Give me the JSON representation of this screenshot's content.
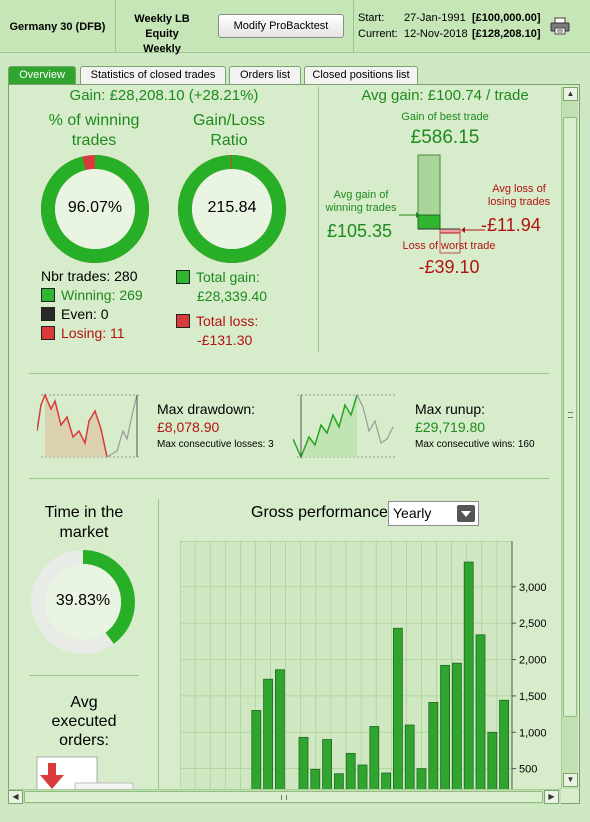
{
  "header": {
    "instrument": "Germany 30 (DFB)",
    "strategy_line1": "Weekly LB Equity",
    "strategy_line2": "Weekly",
    "modify_button": "Modify ProBacktest",
    "start_label": "Start:",
    "start_date": "27-Jan-1991",
    "start_value": "[£100,000.00]",
    "current_label": "Current:",
    "current_date": "12-Nov-2018",
    "current_value": "[£128,208.10]",
    "print_icon": "printer-icon"
  },
  "tabs": [
    "Overview",
    "Statistics of closed trades",
    "Orders list",
    "Closed positions list"
  ],
  "summary": {
    "gain_text": "Gain: £28,208.10 (+28.21%)",
    "pct_winning_title_1": "% of winning",
    "pct_winning_title_2": "trades",
    "pct_winning_value": "96.07%",
    "pct_winning_fraction": 0.9607,
    "gain_loss_title_1": "Gain/Loss",
    "gain_loss_title_2": "Ratio",
    "gain_loss_value": "215.84",
    "gain_loss_fraction": 0.9954,
    "nbr_trades": "Nbr trades: 280",
    "winning": "Winning: 269",
    "even": "Even: 0",
    "losing": "Losing: 11",
    "total_gain_label": "Total gain:",
    "total_gain_value": "£28,339.40",
    "total_loss_label": "Total loss:",
    "total_loss_value": "-£131.30"
  },
  "avg": {
    "title": "Avg gain: £100.74 / trade",
    "best_label": "Gain of best trade",
    "best_value": "£586.15",
    "avg_win_label_1": "Avg gain of",
    "avg_win_label_2": "winning trades",
    "avg_win_value": "£105.35",
    "avg_loss_label_1": "Avg loss of",
    "avg_loss_label_2": "losing trades",
    "avg_loss_value": "-£11.94",
    "worst_label": "Loss of worst trade",
    "worst_value": "-£39.10"
  },
  "drawdown": {
    "title": "Max drawdown:",
    "value": "£8,078.90",
    "sub": "Max consecutive losses: 3"
  },
  "runup": {
    "title": "Max runup:",
    "value": "£29,719.80",
    "sub": "Max consecutive wins: 160"
  },
  "time_market": {
    "title_1": "Time in the",
    "title_2": "market",
    "value": "39.83%",
    "fraction": 0.3983
  },
  "avg_orders": {
    "title_1": "Avg",
    "title_2": "executed",
    "title_3": "orders:"
  },
  "gross": {
    "title": "Gross performance",
    "period": "Yearly"
  },
  "colors": {
    "green": "#1e8a1e",
    "red": "#b31212",
    "bar": "#2fa52f"
  },
  "chart_data": {
    "type": "bar",
    "title": "",
    "ylim": [
      0,
      3300
    ],
    "yticks": [
      500,
      1000,
      1500,
      2000,
      2500,
      3000
    ],
    "ytick_labels": [
      "500",
      "1,000",
      "1,500",
      "2,000",
      "2,500",
      "3,000"
    ],
    "values": [
      40,
      1300,
      1730,
      1860,
      20,
      930,
      490,
      900,
      430,
      710,
      550,
      1080,
      440,
      2430,
      1100,
      500,
      1410,
      1920,
      1950,
      3340,
      2340,
      1000,
      1440
    ],
    "grid": true,
    "legend": "none"
  }
}
